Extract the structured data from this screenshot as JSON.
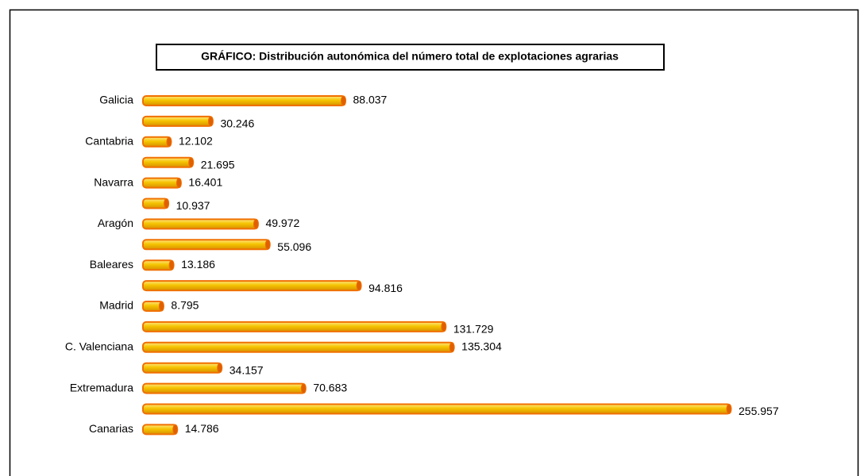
{
  "chart_data": {
    "type": "bar",
    "orientation": "horizontal",
    "title": "GRÁFICO: Distribución autonómica del número total de explotaciones agrarias",
    "categories": [
      "Galicia",
      null,
      "Cantabria",
      null,
      "Navarra",
      null,
      "Aragón",
      null,
      "Baleares",
      null,
      "Madrid",
      null,
      "C. Valenciana",
      null,
      "Extremadura",
      null,
      "Canarias"
    ],
    "values": [
      88037,
      30246,
      12102,
      21695,
      16401,
      10937,
      49972,
      55096,
      13186,
      94816,
      8795,
      131729,
      135304,
      34157,
      70683,
      255957,
      14786
    ],
    "value_labels": [
      "88.037",
      "30.246",
      "12.102",
      "21.695",
      "16.401",
      "10.937",
      "49.972",
      "55.096",
      "13.186",
      "94.816",
      "8.795",
      "131.729",
      "135.304",
      "34.157",
      "70.683",
      "255.957",
      "14.786"
    ],
    "color": "#f07000"
  }
}
